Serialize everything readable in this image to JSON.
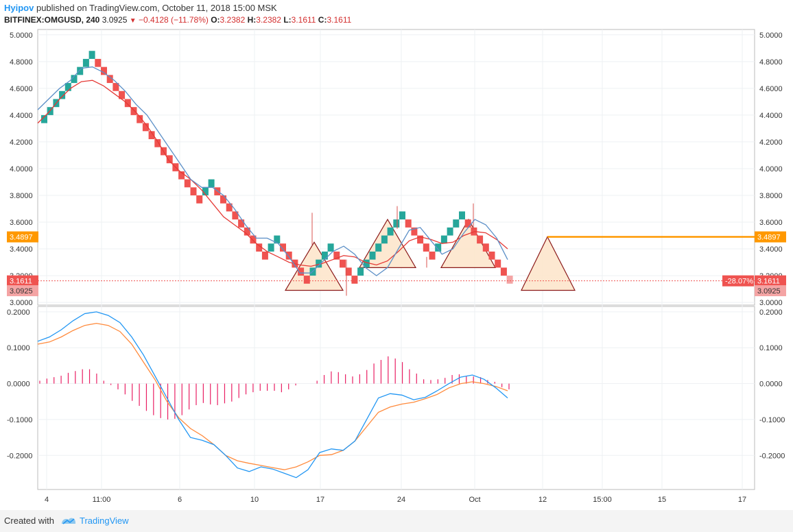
{
  "header": {
    "author": "Hyipov",
    "published": "published on TradingView.com, October 11, 2018 15:00 MSK",
    "symbol": "BITFINEX:OMGUSD, 240",
    "last": "3.0925",
    "change": "−0.4128 (−11.78%)",
    "ohlc": {
      "o": "3.2382",
      "h": "3.2382",
      "l": "3.1611",
      "c": "3.1611"
    }
  },
  "footer": {
    "created_with": "Created with",
    "brand": "TradingView"
  },
  "colors": {
    "up": "#26a69a",
    "down": "#ef5350",
    "ma_fast": "#5b8fc7",
    "ma_slow": "#e53935",
    "macd": "#2196f3",
    "signal": "#ff8a3c",
    "hist": "#e91e63",
    "triangle_fill": "#fde6cc",
    "triangle_stroke": "#8b1a1a",
    "level": "#ff9800"
  },
  "chart_data": [
    {
      "type": "renko",
      "ylim": [
        2.98,
        5.04
      ],
      "price_ticks": [
        "5.0000",
        "4.8000",
        "4.6000",
        "4.4000",
        "4.2000",
        "4.0000",
        "3.8000",
        "3.6000",
        "3.4000",
        "3.2000",
        "3.0000"
      ],
      "time_ticks": [
        "4",
        "11:00",
        "6",
        "10",
        "17",
        "24",
        "Oct",
        "12",
        "15:00",
        "15",
        "17"
      ],
      "brick_size": 0.06,
      "bricks": [
        {
          "dir": "up",
          "bottom": 4.34
        },
        {
          "dir": "up",
          "bottom": 4.4
        },
        {
          "dir": "up",
          "bottom": 4.46
        },
        {
          "dir": "up",
          "bottom": 4.52
        },
        {
          "dir": "up",
          "bottom": 4.58
        },
        {
          "dir": "up",
          "bottom": 4.64
        },
        {
          "dir": "up",
          "bottom": 4.7
        },
        {
          "dir": "up",
          "bottom": 4.76
        },
        {
          "dir": "up",
          "bottom": 4.82
        },
        {
          "dir": "down",
          "bottom": 4.76
        },
        {
          "dir": "down",
          "bottom": 4.7
        },
        {
          "dir": "down",
          "bottom": 4.64
        },
        {
          "dir": "down",
          "bottom": 4.58
        },
        {
          "dir": "down",
          "bottom": 4.52
        },
        {
          "dir": "down",
          "bottom": 4.46
        },
        {
          "dir": "down",
          "bottom": 4.4
        },
        {
          "dir": "down",
          "bottom": 4.34
        },
        {
          "dir": "down",
          "bottom": 4.28
        },
        {
          "dir": "down",
          "bottom": 4.22
        },
        {
          "dir": "down",
          "bottom": 4.16
        },
        {
          "dir": "down",
          "bottom": 4.1
        },
        {
          "dir": "down",
          "bottom": 4.04
        },
        {
          "dir": "down",
          "bottom": 3.98
        },
        {
          "dir": "down",
          "bottom": 3.92
        },
        {
          "dir": "down",
          "bottom": 3.86
        },
        {
          "dir": "down",
          "bottom": 3.8
        },
        {
          "dir": "down",
          "bottom": 3.74
        },
        {
          "dir": "up",
          "bottom": 3.8
        },
        {
          "dir": "up",
          "bottom": 3.86
        },
        {
          "dir": "down",
          "bottom": 3.8
        },
        {
          "dir": "down",
          "bottom": 3.74
        },
        {
          "dir": "down",
          "bottom": 3.68
        },
        {
          "dir": "down",
          "bottom": 3.62
        },
        {
          "dir": "down",
          "bottom": 3.56
        },
        {
          "dir": "down",
          "bottom": 3.5
        },
        {
          "dir": "down",
          "bottom": 3.44
        },
        {
          "dir": "down",
          "bottom": 3.38
        },
        {
          "dir": "down",
          "bottom": 3.32
        },
        {
          "dir": "up",
          "bottom": 3.38
        },
        {
          "dir": "up",
          "bottom": 3.44
        },
        {
          "dir": "down",
          "bottom": 3.38
        },
        {
          "dir": "down",
          "bottom": 3.32
        },
        {
          "dir": "down",
          "bottom": 3.26
        },
        {
          "dir": "down",
          "bottom": 3.2
        },
        {
          "dir": "down",
          "bottom": 3.14
        },
        {
          "dir": "up",
          "bottom": 3.2
        },
        {
          "dir": "up",
          "bottom": 3.26
        },
        {
          "dir": "up",
          "bottom": 3.32
        },
        {
          "dir": "up",
          "bottom": 3.38
        },
        {
          "dir": "down",
          "bottom": 3.32
        },
        {
          "dir": "down",
          "bottom": 3.26
        },
        {
          "dir": "down",
          "bottom": 3.2
        },
        {
          "dir": "down",
          "bottom": 3.14
        },
        {
          "dir": "up",
          "bottom": 3.2
        },
        {
          "dir": "up",
          "bottom": 3.26
        },
        {
          "dir": "up",
          "bottom": 3.32
        },
        {
          "dir": "up",
          "bottom": 3.38
        },
        {
          "dir": "up",
          "bottom": 3.44
        },
        {
          "dir": "up",
          "bottom": 3.5
        },
        {
          "dir": "up",
          "bottom": 3.56
        },
        {
          "dir": "up",
          "bottom": 3.62
        },
        {
          "dir": "down",
          "bottom": 3.56
        },
        {
          "dir": "down",
          "bottom": 3.5
        },
        {
          "dir": "down",
          "bottom": 3.44
        },
        {
          "dir": "down",
          "bottom": 3.38
        },
        {
          "dir": "down",
          "bottom": 3.32
        },
        {
          "dir": "up",
          "bottom": 3.38
        },
        {
          "dir": "up",
          "bottom": 3.44
        },
        {
          "dir": "up",
          "bottom": 3.5
        },
        {
          "dir": "up",
          "bottom": 3.56
        },
        {
          "dir": "up",
          "bottom": 3.62
        },
        {
          "dir": "down",
          "bottom": 3.56
        },
        {
          "dir": "down",
          "bottom": 3.5
        },
        {
          "dir": "down",
          "bottom": 3.44
        },
        {
          "dir": "down",
          "bottom": 3.38
        },
        {
          "dir": "down",
          "bottom": 3.32
        },
        {
          "dir": "down",
          "bottom": 3.26
        },
        {
          "dir": "down",
          "bottom": 3.2
        },
        {
          "dir": "pending",
          "bottom": 3.14
        }
      ],
      "ma_fast": [
        4.44,
        4.52,
        4.6,
        4.66,
        4.75,
        4.76,
        4.72,
        4.66,
        4.58,
        4.48,
        4.4,
        4.28,
        4.16,
        4.04,
        3.92,
        3.86,
        3.86,
        3.8,
        3.7,
        3.58,
        3.48,
        3.48,
        3.44,
        3.34,
        3.22,
        3.22,
        3.3,
        3.38,
        3.42,
        3.36,
        3.26,
        3.2,
        3.26,
        3.4,
        3.54,
        3.56,
        3.46,
        3.36,
        3.4,
        3.52,
        3.62,
        3.58,
        3.48,
        3.32
      ],
      "ma_slow": [
        4.34,
        4.42,
        4.52,
        4.6,
        4.65,
        4.66,
        4.62,
        4.56,
        4.5,
        4.42,
        4.32,
        4.2,
        4.06,
        3.98,
        3.92,
        3.84,
        3.74,
        3.64,
        3.58,
        3.52,
        3.44,
        3.38,
        3.34,
        3.3,
        3.28,
        3.27,
        3.29,
        3.32,
        3.35,
        3.34,
        3.3,
        3.28,
        3.31,
        3.38,
        3.46,
        3.49,
        3.47,
        3.44,
        3.45,
        3.5,
        3.53,
        3.52,
        3.47,
        3.4
      ],
      "patterns": [
        {
          "type": "triangle",
          "apex": 3.45,
          "base": 3.09
        },
        {
          "type": "triangle",
          "apex": 3.62,
          "base": 3.26
        },
        {
          "type": "triangle",
          "apex": 3.62,
          "base": 3.26
        },
        {
          "type": "triangle",
          "apex": 3.49,
          "base": 3.09
        }
      ],
      "level_line": 3.4897,
      "labels": {
        "level": "3.4897",
        "close": "3.1611",
        "last": "3.0925",
        "pct": "-28.07%"
      }
    },
    {
      "type": "macd",
      "ylim": [
        -0.295,
        0.215
      ],
      "ticks": [
        "0.2000",
        "0.1000",
        "0.0000",
        "-0.1000",
        "-0.2000"
      ],
      "macd": [
        0.118,
        0.13,
        0.15,
        0.175,
        0.195,
        0.2,
        0.19,
        0.17,
        0.13,
        0.08,
        0.02,
        -0.04,
        -0.1,
        -0.15,
        -0.158,
        -0.17,
        -0.2,
        -0.235,
        -0.245,
        -0.232,
        -0.238,
        -0.25,
        -0.262,
        -0.24,
        -0.192,
        -0.182,
        -0.186,
        -0.16,
        -0.1,
        -0.04,
        -0.028,
        -0.032,
        -0.045,
        -0.038,
        -0.02,
        0.0,
        0.018,
        0.024,
        0.012,
        -0.012,
        -0.04
      ],
      "signal": [
        0.11,
        0.116,
        0.13,
        0.148,
        0.162,
        0.168,
        0.162,
        0.145,
        0.11,
        0.06,
        0.01,
        -0.05,
        -0.095,
        -0.125,
        -0.145,
        -0.17,
        -0.2,
        -0.215,
        -0.222,
        -0.228,
        -0.234,
        -0.24,
        -0.232,
        -0.218,
        -0.2,
        -0.198,
        -0.186,
        -0.16,
        -0.12,
        -0.08,
        -0.065,
        -0.057,
        -0.052,
        -0.042,
        -0.03,
        -0.012,
        0.0,
        0.005,
        0.0,
        -0.008,
        -0.02
      ],
      "histogram": [
        0.008,
        0.014,
        0.018,
        0.022,
        0.03,
        0.035,
        0.04,
        0.04,
        0.028,
        0.008,
        -0.004,
        -0.016,
        -0.03,
        -0.048,
        -0.062,
        -0.076,
        -0.088,
        -0.096,
        -0.1,
        -0.098,
        -0.088,
        -0.072,
        -0.06,
        -0.054,
        -0.058,
        -0.06,
        -0.055,
        -0.05,
        -0.04,
        -0.03,
        -0.024,
        -0.02,
        -0.02,
        -0.02,
        -0.024,
        -0.016,
        -0.005,
        0.0,
        0.0,
        0.008,
        0.024,
        0.034,
        0.032,
        0.026,
        0.02,
        0.026,
        0.038,
        0.056,
        0.066,
        0.076,
        0.07,
        0.06,
        0.04,
        0.028,
        0.012,
        0.01,
        0.012,
        0.016,
        0.024,
        0.026,
        0.02,
        0.02,
        0.018,
        0.01,
        0.005,
        -0.01,
        -0.016
      ]
    }
  ]
}
